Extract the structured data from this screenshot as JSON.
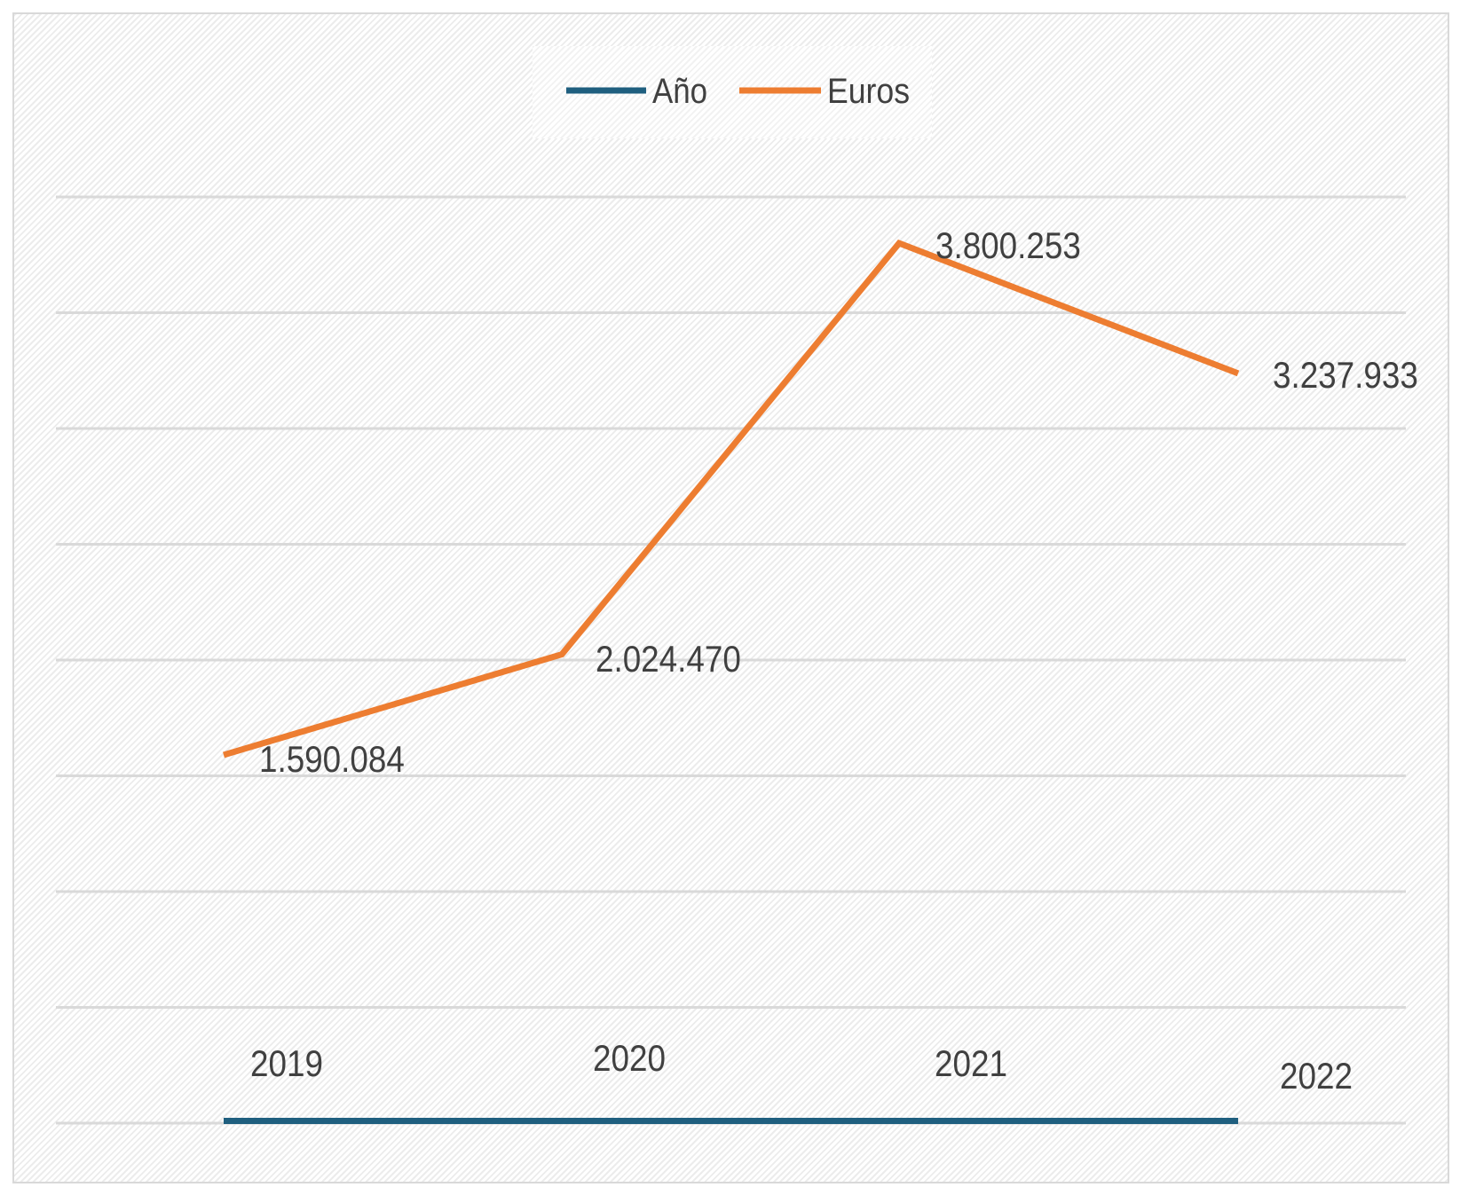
{
  "chart_data": {
    "type": "line",
    "title": "",
    "xlabel": "",
    "ylabel": "",
    "ylim": [
      0,
      4000000
    ],
    "grid": true,
    "gridline_step": 500000,
    "legend_position": "top",
    "x_positions": [
      0,
      1,
      2,
      3
    ],
    "series": [
      {
        "name": "Año",
        "color": "#1f5f7f",
        "values": [
          2019,
          2020,
          2021,
          2022
        ],
        "labels": [
          "2019",
          "2020",
          "2021",
          "2022"
        ]
      },
      {
        "name": "Euros",
        "color": "#ed7d31",
        "values": [
          1590084,
          2024470,
          3800253,
          3237933
        ],
        "labels": [
          "1.590.084",
          "2.024.470",
          "3.800.253",
          "3.237.933"
        ]
      }
    ]
  }
}
